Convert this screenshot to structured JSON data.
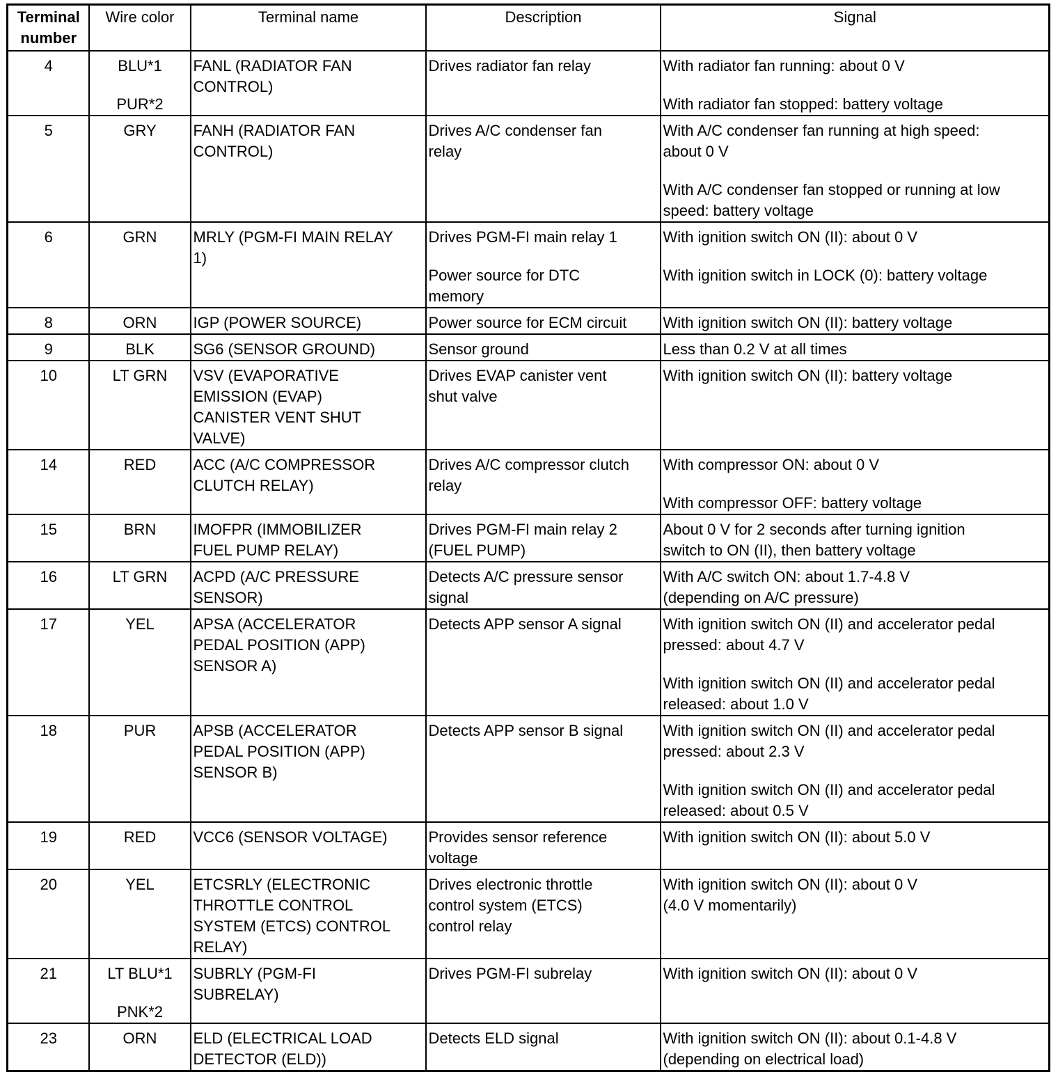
{
  "headers": [
    "Terminal\nnumber",
    "Wire color",
    "Terminal name",
    "Description",
    "Signal"
  ],
  "rows": [
    {
      "terminal": "4",
      "wire": [
        "BLU*1",
        "PUR*2"
      ],
      "name": [
        "FANL (RADIATOR FAN\nCONTROL)"
      ],
      "description": [
        "Drives radiator fan relay"
      ],
      "signal": [
        "With radiator fan running: about 0 V",
        "With radiator fan stopped: battery voltage"
      ]
    },
    {
      "terminal": "5",
      "wire": [
        "GRY"
      ],
      "name": [
        "FANH (RADIATOR FAN\nCONTROL)"
      ],
      "description": [
        "Drives A/C condenser fan\nrelay"
      ],
      "signal": [
        "With A/C condenser fan running at high speed:\nabout 0 V",
        "With A/C condenser fan stopped or running at low\nspeed: battery voltage"
      ]
    },
    {
      "terminal": "6",
      "wire": [
        "GRN"
      ],
      "name": [
        "MRLY (PGM-FI MAIN RELAY\n1)"
      ],
      "description": [
        "Drives PGM-FI main relay 1",
        "Power source for DTC\nmemory"
      ],
      "signal": [
        "With ignition switch ON (II): about 0 V",
        "With ignition switch in LOCK (0): battery voltage"
      ]
    },
    {
      "terminal": "8",
      "wire": [
        "ORN"
      ],
      "name": [
        "IGP (POWER SOURCE)"
      ],
      "description": [
        "Power source for ECM circuit"
      ],
      "signal": [
        "With ignition switch ON (II): battery voltage"
      ]
    },
    {
      "terminal": "9",
      "wire": [
        "BLK"
      ],
      "name": [
        "SG6 (SENSOR GROUND)"
      ],
      "description": [
        "Sensor ground"
      ],
      "signal": [
        "Less than 0.2 V at all times"
      ]
    },
    {
      "terminal": "10",
      "wire": [
        "LT GRN"
      ],
      "name": [
        "VSV (EVAPORATIVE\nEMISSION (EVAP)\nCANISTER VENT SHUT\nVALVE)"
      ],
      "description": [
        "Drives EVAP canister vent\nshut valve"
      ],
      "signal": [
        "With ignition switch ON (II): battery voltage"
      ]
    },
    {
      "terminal": "14",
      "wire": [
        "RED"
      ],
      "name": [
        "ACC (A/C COMPRESSOR\nCLUTCH RELAY)"
      ],
      "description": [
        "Drives A/C compressor clutch\nrelay"
      ],
      "signal": [
        "With compressor ON: about 0 V",
        "With compressor OFF: battery voltage"
      ]
    },
    {
      "terminal": "15",
      "wire": [
        "BRN"
      ],
      "name": [
        "IMOFPR (IMMOBILIZER\nFUEL PUMP RELAY)"
      ],
      "description": [
        "Drives PGM-FI main relay 2\n(FUEL PUMP)"
      ],
      "signal": [
        "About 0 V for 2 seconds after turning ignition\nswitch to ON (II), then battery voltage"
      ]
    },
    {
      "terminal": "16",
      "wire": [
        "LT GRN"
      ],
      "name": [
        "ACPD (A/C PRESSURE\nSENSOR)"
      ],
      "description": [
        "Detects A/C pressure sensor\nsignal"
      ],
      "signal": [
        "With A/C switch ON: about 1.7-4.8 V\n(depending on A/C pressure)"
      ]
    },
    {
      "terminal": "17",
      "wire": [
        "YEL"
      ],
      "name": [
        "APSA (ACCELERATOR\nPEDAL POSITION (APP)\nSENSOR A)"
      ],
      "description": [
        "Detects APP sensor A signal"
      ],
      "signal": [
        "With ignition switch ON (II) and accelerator pedal\npressed: about 4.7 V",
        "With ignition switch ON (II) and accelerator pedal\nreleased: about 1.0 V"
      ]
    },
    {
      "terminal": "18",
      "wire": [
        "PUR"
      ],
      "name": [
        "APSB (ACCELERATOR\nPEDAL POSITION (APP)\nSENSOR B)"
      ],
      "description": [
        "Detects APP sensor B signal"
      ],
      "signal": [
        "With ignition switch ON (II) and accelerator pedal\npressed: about 2.3 V",
        "With ignition switch ON (II) and accelerator pedal\nreleased: about 0.5 V"
      ]
    },
    {
      "terminal": "19",
      "wire": [
        "RED"
      ],
      "name": [
        "VCC6 (SENSOR VOLTAGE)"
      ],
      "description": [
        "Provides sensor reference\nvoltage"
      ],
      "signal": [
        "With ignition switch ON (II): about 5.0 V"
      ]
    },
    {
      "terminal": "20",
      "wire": [
        "YEL"
      ],
      "name": [
        "ETCSRLY (ELECTRONIC\nTHROTTLE CONTROL\nSYSTEM (ETCS) CONTROL\nRELAY)"
      ],
      "description": [
        "Drives electronic throttle\ncontrol system (ETCS)\ncontrol relay"
      ],
      "signal": [
        "With ignition switch ON (II): about 0 V\n(4.0 V momentarily)"
      ]
    },
    {
      "terminal": "21",
      "wire": [
        "LT BLU*1",
        "PNK*2"
      ],
      "name": [
        "SUBRLY (PGM-FI\nSUBRELAY)"
      ],
      "description": [
        "Drives PGM-FI subrelay"
      ],
      "signal": [
        "With ignition switch ON (II): about 0 V"
      ]
    },
    {
      "terminal": "23",
      "wire": [
        "ORN"
      ],
      "name": [
        "ELD (ELECTRICAL LOAD\nDETECTOR (ELD))"
      ],
      "description": [
        "Detects ELD signal"
      ],
      "signal": [
        "With ignition switch ON (II): about 0.1-4.8 V\n(depending on electrical load)"
      ]
    }
  ]
}
